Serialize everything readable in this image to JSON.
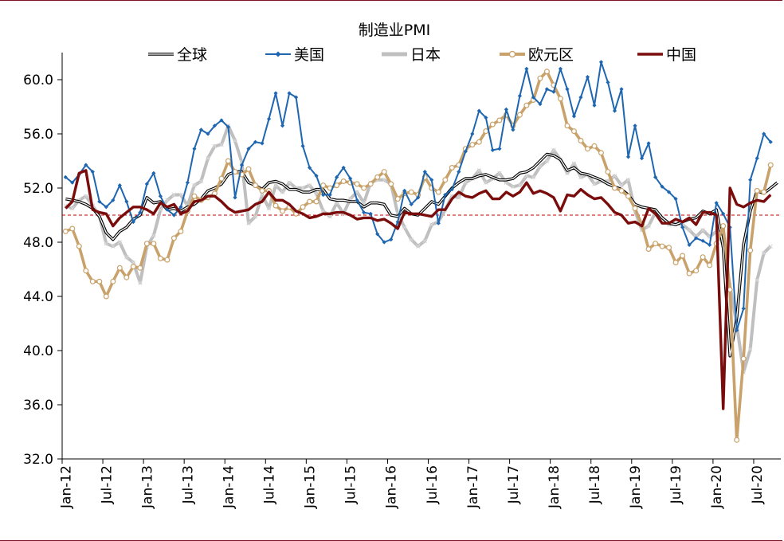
{
  "chart_data": {
    "type": "line",
    "title": "制造业PMI",
    "xlabel": "",
    "ylabel": "",
    "ylim": [
      32.0,
      62.0
    ],
    "yticks": [
      "32.0",
      "36.0",
      "40.0",
      "44.0",
      "48.0",
      "52.0",
      "56.0",
      "60.0"
    ],
    "ytick_values": [
      32,
      36,
      40,
      44,
      48,
      52,
      56,
      60
    ],
    "xticks": [
      "Jan-12",
      "Jul-12",
      "Jan-13",
      "Jul-13",
      "Jan-14",
      "Jul-14",
      "Jan-15",
      "Jul-15",
      "Jan-16",
      "Jul-16",
      "Jan-17",
      "Jul-17",
      "Jan-18",
      "Jul-18",
      "Jan-19",
      "Jul-19",
      "Jan-20",
      "Jul-20"
    ],
    "xtick_month_index": [
      0,
      6,
      12,
      18,
      24,
      30,
      36,
      42,
      48,
      54,
      60,
      66,
      72,
      78,
      84,
      90,
      96,
      102
    ],
    "x_start": "Jan-12",
    "n_months": 106,
    "reference_line": {
      "value": 50,
      "color": "#c00000",
      "style": "dashed"
    },
    "legend_position": "top",
    "series": [
      {
        "name": "全球",
        "color": "#000000",
        "style": "double-line",
        "values": [
          51.2,
          51.1,
          51.0,
          50.8,
          50.5,
          49.9,
          48.7,
          48.2,
          48.8,
          49.1,
          49.7,
          50.0,
          51.3,
          50.9,
          51.0,
          50.4,
          50.5,
          50.3,
          50.6,
          50.8,
          51.2,
          51.8,
          52.0,
          52.3,
          53.0,
          53.2,
          53.2,
          52.4,
          52.2,
          51.9,
          52.4,
          52.5,
          52.3,
          51.9,
          51.9,
          51.7,
          51.7,
          51.9,
          51.9,
          51.2,
          51.1,
          51.1,
          51.0,
          51.0,
          50.6,
          50.9,
          50.9,
          50.8,
          50.0,
          49.9,
          50.5,
          50.1,
          50.0,
          50.5,
          51.0,
          50.8,
          51.4,
          52.0,
          52.4,
          52.7,
          52.7,
          52.9,
          53.0,
          52.8,
          52.6,
          52.6,
          52.7,
          53.1,
          53.2,
          53.5,
          54.0,
          54.5,
          54.4,
          54.1,
          53.3,
          53.5,
          53.1,
          53.0,
          52.8,
          52.6,
          52.3,
          52.1,
          51.9,
          51.5,
          50.8,
          50.6,
          50.5,
          50.4,
          49.8,
          49.4,
          49.3,
          49.5,
          49.7,
          49.8,
          50.3,
          50.1,
          50.4,
          47.6,
          39.6,
          42.4,
          47.8,
          50.3,
          51.8,
          51.6,
          52.0,
          52.4
        ]
      },
      {
        "name": "美国",
        "color": "#1f66b0",
        "style": "line-diamond",
        "values": [
          52.8,
          52.4,
          53.0,
          53.7,
          53.2,
          51.0,
          50.6,
          51.1,
          52.2,
          51.0,
          49.5,
          50.2,
          52.3,
          53.1,
          51.4,
          50.4,
          50.0,
          50.6,
          52.4,
          54.9,
          56.3,
          56.0,
          56.6,
          57.0,
          56.5,
          51.3,
          53.7,
          54.9,
          55.4,
          55.3,
          57.1,
          59.0,
          56.6,
          59.0,
          58.7,
          55.1,
          53.5,
          52.9,
          51.5,
          51.5,
          52.8,
          53.5,
          52.7,
          51.1,
          50.2,
          50.1,
          48.6,
          48.0,
          48.2,
          49.5,
          51.8,
          50.8,
          51.3,
          53.2,
          52.6,
          49.4,
          51.5,
          51.9,
          53.2,
          54.7,
          56.0,
          57.7,
          57.2,
          54.8,
          54.9,
          57.8,
          56.3,
          58.8,
          60.8,
          58.7,
          58.2,
          59.3,
          59.1,
          60.8,
          59.3,
          57.3,
          58.7,
          60.2,
          58.1,
          61.3,
          59.8,
          57.7,
          59.3,
          54.3,
          56.6,
          54.2,
          55.3,
          52.8,
          52.1,
          51.7,
          51.2,
          49.1,
          47.8,
          48.3,
          48.1,
          47.8,
          50.9,
          50.1,
          49.1,
          41.5,
          43.1,
          52.6,
          54.2,
          56.0,
          55.4
        ]
      },
      {
        "name": "日本",
        "color": "#bfbfbf",
        "style": "thick-line-star",
        "values": [
          50.7,
          50.5,
          51.1,
          51.4,
          50.7,
          49.9,
          47.9,
          47.7,
          48.0,
          46.9,
          46.5,
          45.0,
          47.7,
          48.5,
          50.4,
          51.1,
          51.5,
          51.5,
          50.7,
          52.2,
          52.5,
          54.2,
          55.1,
          55.2,
          56.6,
          55.5,
          53.9,
          49.4,
          49.9,
          51.5,
          50.5,
          52.2,
          51.7,
          52.4,
          52.0,
          52.0,
          52.2,
          51.6,
          50.3,
          49.9,
          50.9,
          50.1,
          51.2,
          51.7,
          50.9,
          52.4,
          52.6,
          52.6,
          52.3,
          50.1,
          49.1,
          48.2,
          47.7,
          48.1,
          49.3,
          49.5,
          50.4,
          51.4,
          51.3,
          52.4,
          52.7,
          53.3,
          52.4,
          52.7,
          53.1,
          52.4,
          52.1,
          52.2,
          52.9,
          52.8,
          53.6,
          54.0,
          54.8,
          54.1,
          53.1,
          53.8,
          52.8,
          53.0,
          52.3,
          52.5,
          52.5,
          52.9,
          52.2,
          52.6,
          50.3,
          48.9,
          49.2,
          50.2,
          49.8,
          49.3,
          49.4,
          49.3,
          48.9,
          48.4,
          48.9,
          48.4,
          48.8,
          47.8,
          44.8,
          41.9,
          38.4,
          40.1,
          45.2,
          47.2,
          47.7
        ]
      },
      {
        "name": "欧元区",
        "color": "#c8a26a",
        "style": "thick-line-circle",
        "values": [
          48.8,
          49.0,
          47.7,
          45.9,
          45.1,
          45.1,
          44.0,
          45.1,
          46.1,
          45.4,
          46.2,
          46.1,
          47.9,
          47.9,
          46.8,
          46.7,
          48.3,
          48.8,
          50.3,
          51.4,
          51.1,
          51.3,
          51.6,
          52.7,
          54.0,
          53.2,
          53.0,
          53.4,
          52.2,
          51.8,
          51.8,
          50.7,
          50.3,
          50.6,
          50.1,
          50.6,
          51.0,
          51.0,
          52.2,
          52.0,
          52.2,
          52.5,
          52.4,
          52.3,
          52.0,
          52.3,
          52.8,
          53.2,
          52.3,
          51.2,
          51.6,
          51.7,
          51.5,
          52.8,
          52.0,
          51.7,
          52.6,
          53.5,
          53.7,
          54.9,
          55.2,
          55.4,
          56.2,
          56.7,
          57.0,
          57.4,
          56.6,
          57.4,
          58.1,
          58.5,
          60.1,
          60.6,
          59.6,
          58.6,
          56.6,
          56.2,
          55.5,
          54.9,
          55.1,
          54.6,
          53.2,
          52.0,
          51.8,
          51.4,
          50.5,
          49.3,
          47.5,
          47.9,
          47.7,
          47.6,
          46.5,
          47.0,
          45.7,
          45.9,
          46.9,
          46.3,
          47.9,
          49.2,
          44.5,
          33.4,
          39.4,
          47.4,
          51.8,
          51.7,
          53.7
        ]
      },
      {
        "name": "中国",
        "color": "#7a0c0c",
        "style": "thick-line",
        "values": [
          50.5,
          51.0,
          53.1,
          53.3,
          50.4,
          50.2,
          50.1,
          49.2,
          49.8,
          50.2,
          50.6,
          50.6,
          50.4,
          50.1,
          50.9,
          50.6,
          50.8,
          50.1,
          50.3,
          51.0,
          51.1,
          51.4,
          51.4,
          51.0,
          50.5,
          50.2,
          50.3,
          50.4,
          50.8,
          51.0,
          51.7,
          51.1,
          51.1,
          50.8,
          50.3,
          50.1,
          49.8,
          49.9,
          50.1,
          50.1,
          50.2,
          50.2,
          50.0,
          49.7,
          49.8,
          49.8,
          49.6,
          49.7,
          49.4,
          49.0,
          50.2,
          50.1,
          50.1,
          50.0,
          49.9,
          50.4,
          50.4,
          51.2,
          51.7,
          51.4,
          51.3,
          51.6,
          51.8,
          51.2,
          51.2,
          51.7,
          51.4,
          51.7,
          52.4,
          51.6,
          51.8,
          51.6,
          51.3,
          50.3,
          51.5,
          51.4,
          51.9,
          51.5,
          51.2,
          51.3,
          50.8,
          50.2,
          50.0,
          49.4,
          49.5,
          49.2,
          50.5,
          50.1,
          49.4,
          49.4,
          49.7,
          49.5,
          49.8,
          49.3,
          50.2,
          50.2,
          50.0,
          35.7,
          52.0,
          50.8,
          50.6,
          50.9,
          51.1,
          51.0,
          51.5
        ]
      }
    ]
  }
}
